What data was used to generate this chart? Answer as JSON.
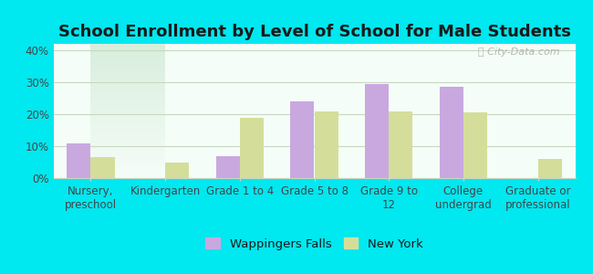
{
  "title": "School Enrollment by Level of School for Male Students",
  "categories": [
    "Nursery,\npreschool",
    "Kindergarten",
    "Grade 1 to 4",
    "Grade 5 to 8",
    "Grade 9 to\n12",
    "College\nundergrad",
    "Graduate or\nprofessional"
  ],
  "wappingers_falls": [
    11,
    0,
    7,
    24,
    29.5,
    28.5,
    0
  ],
  "new_york": [
    6.5,
    5,
    19,
    21,
    21,
    20.5,
    6
  ],
  "bar_color_wf": "#c9a8e0",
  "bar_color_ny": "#d4de9a",
  "background_outer": "#00e8f0",
  "background_inner_top": "#f5fdf8",
  "background_inner_bottom": "#d8eedd",
  "title_color": "#1a1a1a",
  "ylabel_ticks": [
    "0%",
    "10%",
    "20%",
    "30%",
    "40%"
  ],
  "yticks": [
    0,
    10,
    20,
    30,
    40
  ],
  "ylim": [
    0,
    42
  ],
  "legend_labels": [
    "Wappingers Falls",
    "New York"
  ],
  "grid_color": "#c8d8c0",
  "title_fontsize": 13,
  "tick_fontsize": 8.5,
  "legend_fontsize": 9.5,
  "bar_width": 0.32
}
